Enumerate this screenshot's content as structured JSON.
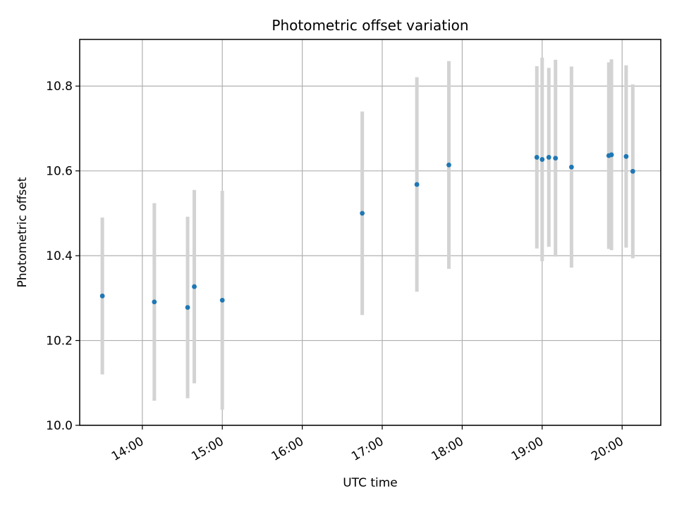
{
  "chart_data": {
    "type": "scatter",
    "title": "Photometric offset variation",
    "xlabel": "UTC time",
    "ylabel": "Photometric offset",
    "xlim": [
      "13:13",
      "20:29"
    ],
    "ylim": [
      10.0,
      10.91
    ],
    "x_tick_labels": [
      "14:00",
      "15:00",
      "16:00",
      "17:00",
      "18:00",
      "19:00",
      "20:00"
    ],
    "y_tick_labels": [
      "10.0",
      "10.2",
      "10.4",
      "10.6",
      "10.8"
    ],
    "grid": true,
    "point_color": "#1f77b4",
    "errorbar_color": "#d3d3d3",
    "points": [
      {
        "x": "13:30",
        "y": 10.305,
        "err": 0.185
      },
      {
        "x": "14:09",
        "y": 10.291,
        "err": 0.233
      },
      {
        "x": "14:34",
        "y": 10.278,
        "err": 0.214
      },
      {
        "x": "14:39",
        "y": 10.327,
        "err": 0.228
      },
      {
        "x": "15:00",
        "y": 10.295,
        "err": 0.258
      },
      {
        "x": "16:45",
        "y": 10.5,
        "err": 0.24
      },
      {
        "x": "17:26",
        "y": 10.568,
        "err": 0.253
      },
      {
        "x": "17:50",
        "y": 10.614,
        "err": 0.245
      },
      {
        "x": "18:56",
        "y": 10.632,
        "err": 0.215
      },
      {
        "x": "19:00",
        "y": 10.627,
        "err": 0.24
      },
      {
        "x": "19:05",
        "y": 10.632,
        "err": 0.211
      },
      {
        "x": "19:10",
        "y": 10.63,
        "err": 0.232
      },
      {
        "x": "19:22",
        "y": 10.609,
        "err": 0.237
      },
      {
        "x": "19:50",
        "y": 10.636,
        "err": 0.22
      },
      {
        "x": "19:52",
        "y": 10.638,
        "err": 0.225
      },
      {
        "x": "20:03",
        "y": 10.634,
        "err": 0.215
      },
      {
        "x": "20:08",
        "y": 10.599,
        "err": 0.205
      }
    ]
  }
}
